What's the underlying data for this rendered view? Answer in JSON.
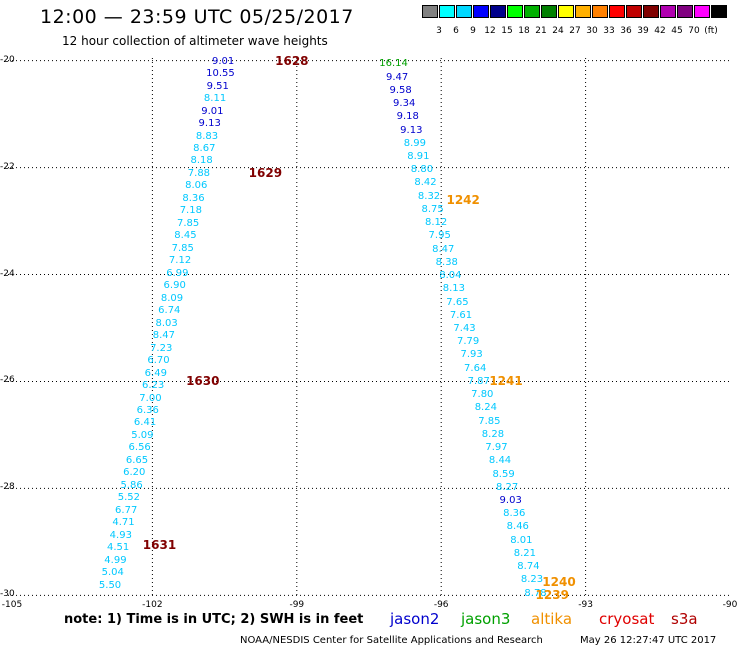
{
  "header": {
    "title": "12:00 — 23:59 UTC 05/25/2017",
    "subtitle": "12 hour collection of altimeter wave heights"
  },
  "scale": {
    "colors": [
      "#808080",
      "#00ffff",
      "#00d8ff",
      "#0000ff",
      "#00008b",
      "#00ff00",
      "#00b000",
      "#008000",
      "#ffff00",
      "#ffb000",
      "#ff8000",
      "#ff0000",
      "#c00000",
      "#800000",
      "#b000b0",
      "#800080",
      "#ff00ff",
      "#000000"
    ],
    "labels": [
      "3",
      "6",
      "9",
      "12",
      "15",
      "18",
      "21",
      "24",
      "27",
      "30",
      "33",
      "36",
      "39",
      "42",
      "45",
      "70",
      "(ft)"
    ]
  },
  "map": {
    "lon_ticks": [
      "-105",
      "-102",
      "-99",
      "-96",
      "-93",
      "-90"
    ],
    "lat_ticks": [
      "-20",
      "-22",
      "-24",
      "-26",
      "-28",
      "-30"
    ]
  },
  "chart_data": {
    "type": "scatter",
    "title": "12:00 — 23:59 UTC 05/25/2017",
    "subtitle": "12 hour collection of altimeter wave heights",
    "xlim": [
      -105,
      -90
    ],
    "ylim": [
      -30.05,
      -19.95
    ],
    "x_ticks": [
      -105,
      -102,
      -99,
      -96,
      -93,
      -90
    ],
    "y_ticks": [
      -20,
      -22,
      -24,
      -26,
      -28,
      -30
    ],
    "grid": true,
    "units": "ft",
    "colors": {
      "cyan": "#00c8ff",
      "blue": "#0000cd",
      "green": "#00a000",
      "orbit_maroon": "#800000",
      "orbit_orange": "#f09000"
    },
    "tracks": [
      {
        "name": "cryosat",
        "start": [
          -100.53,
          -20.0
        ],
        "end": [
          -102.88,
          -29.8
        ],
        "values": [
          "9.01",
          "10.55",
          "9.51",
          "8.11",
          "9.01",
          "9.13",
          "8.83",
          "8.67",
          "8.18",
          "7.88",
          "8.06",
          "8.36",
          "7.18",
          "7.85",
          "8.45",
          "7.85",
          "7.12",
          "6.99",
          "6.90",
          "8.09",
          "6.74",
          "8.03",
          "8.47",
          "7.23",
          "6.70",
          "6.49",
          "6.23",
          "7.00",
          "6.36",
          "6.41",
          "5.09",
          "6.56",
          "6.65",
          "6.20",
          "5.86",
          "5.52",
          "6.77",
          "4.71",
          "4.93",
          "4.51",
          "4.99",
          "5.04",
          "5.50"
        ],
        "value_colors": [
          "blue",
          "blue",
          "blue",
          "cyan",
          "blue",
          "blue",
          "cyan",
          "cyan",
          "cyan",
          "cyan",
          "cyan",
          "cyan",
          "cyan",
          "cyan",
          "cyan",
          "cyan",
          "cyan",
          "cyan",
          "cyan",
          "cyan",
          "cyan",
          "cyan",
          "cyan",
          "cyan",
          "cyan",
          "cyan",
          "cyan",
          "cyan",
          "cyan",
          "cyan",
          "cyan",
          "cyan",
          "cyan",
          "cyan",
          "cyan",
          "cyan",
          "cyan",
          "cyan",
          "cyan",
          "cyan",
          "cyan",
          "cyan",
          "cyan"
        ]
      },
      {
        "name": "altika",
        "start": [
          -96.99,
          -20.05
        ],
        "end": [
          -94.04,
          -29.95
        ],
        "values": [
          "16.14",
          "9.47",
          "9.58",
          "9.34",
          "9.18",
          "9.13",
          "8.99",
          "8.91",
          "8.80",
          "8.42",
          "8.32",
          "8.75",
          "8.12",
          "7.95",
          "8.47",
          "8.38",
          "8.04",
          "8.13",
          "7.65",
          "7.61",
          "7.43",
          "7.79",
          "7.93",
          "7.64",
          "7.87",
          "7.80",
          "8.24",
          "7.85",
          "8.28",
          "7.97",
          "8.44",
          "8.59",
          "8.27",
          "9.03",
          "8.36",
          "8.46",
          "8.01",
          "8.21",
          "8.74",
          "8.23",
          "8.78"
        ],
        "value_colors": [
          "green",
          "blue",
          "blue",
          "blue",
          "blue",
          "blue",
          "cyan",
          "cyan",
          "cyan",
          "cyan",
          "cyan",
          "cyan",
          "cyan",
          "cyan",
          "cyan",
          "cyan",
          "cyan",
          "cyan",
          "cyan",
          "cyan",
          "cyan",
          "cyan",
          "cyan",
          "cyan",
          "cyan",
          "cyan",
          "cyan",
          "cyan",
          "cyan",
          "cyan",
          "cyan",
          "cyan",
          "cyan",
          "blue",
          "cyan",
          "cyan",
          "cyan",
          "cyan",
          "cyan",
          "cyan",
          "cyan"
        ]
      }
    ],
    "orbits": [
      {
        "label": "1628",
        "lon": -99.45,
        "lat": -20.0,
        "color": "orbit_maroon"
      },
      {
        "label": "1629",
        "lon": -100.0,
        "lat": -22.1,
        "color": "orbit_maroon"
      },
      {
        "label": "1630",
        "lon": -101.3,
        "lat": -26.0,
        "color": "orbit_maroon"
      },
      {
        "label": "1631",
        "lon": -102.2,
        "lat": -29.05,
        "color": "orbit_maroon"
      },
      {
        "label": "1242",
        "lon": -95.89,
        "lat": -22.6,
        "color": "orbit_orange"
      },
      {
        "label": "1241",
        "lon": -95.0,
        "lat": -26.0,
        "color": "orbit_orange"
      },
      {
        "label": "1240",
        "lon": -93.9,
        "lat": -29.75,
        "color": "orbit_orange"
      },
      {
        "label": "1239",
        "lon": -94.04,
        "lat": -30.0,
        "color": "orbit_orange"
      }
    ]
  },
  "notes": {
    "text": "note: 1) Time is in UTC; 2) SWH is in feet",
    "satellites": [
      {
        "label": "jason2",
        "color": "#0000cc"
      },
      {
        "label": "jason3",
        "color": "#00a000"
      },
      {
        "label": "altika",
        "color": "#f09000"
      },
      {
        "label": "cryosat",
        "color": "#e00000"
      },
      {
        "label": "s3a",
        "color": "#b00000"
      }
    ]
  },
  "footer": {
    "center": "NOAA/NESDIS Center for Satellite Applications and Research",
    "timestamp": "May 26 12:27:47 UTC 2017"
  }
}
